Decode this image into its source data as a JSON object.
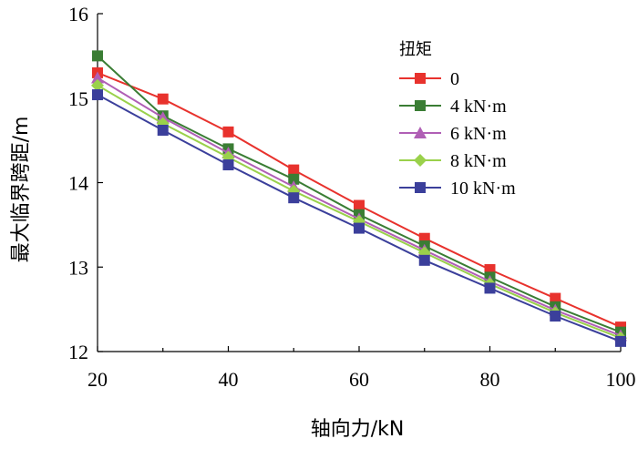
{
  "chart_data": {
    "type": "line",
    "title": "",
    "xlabel": "轴向力/kN",
    "ylabel": "最大临界跨距/m",
    "x": [
      20,
      30,
      40,
      50,
      60,
      70,
      80,
      90,
      100
    ],
    "xlim": [
      20,
      100
    ],
    "ylim": [
      12,
      16
    ],
    "xticks": [
      "20",
      "40",
      "60",
      "80",
      "100"
    ],
    "yticks": [
      "12",
      "13",
      "14",
      "15",
      "16"
    ],
    "grid": false,
    "legend_position": "top-right",
    "legend_title": "扭矩",
    "series": [
      {
        "name": "0",
        "color": "#e8322d",
        "marker": "square",
        "values": [
          15.3,
          14.99,
          14.6,
          14.15,
          13.73,
          13.34,
          12.97,
          12.63,
          12.29
        ]
      },
      {
        "name": "4 kN·m",
        "color": "#3a7d34",
        "marker": "square",
        "values": [
          15.5,
          14.79,
          14.4,
          14.04,
          13.62,
          13.25,
          12.88,
          12.53,
          12.23
        ]
      },
      {
        "name": "6 kN·m",
        "color": "#b05fb5",
        "marker": "triangle",
        "values": [
          15.24,
          14.77,
          14.35,
          13.95,
          13.57,
          13.2,
          12.83,
          12.49,
          12.19
        ]
      },
      {
        "name": "8 kN·m",
        "color": "#9ad14b",
        "marker": "diamond",
        "values": [
          15.15,
          14.7,
          14.3,
          13.9,
          13.54,
          13.17,
          12.8,
          12.46,
          12.16
        ]
      },
      {
        "name": "10 kN·m",
        "color": "#3b3f9b",
        "marker": "square",
        "values": [
          15.04,
          14.62,
          14.21,
          13.82,
          13.46,
          13.08,
          12.75,
          12.42,
          12.12
        ]
      }
    ]
  }
}
